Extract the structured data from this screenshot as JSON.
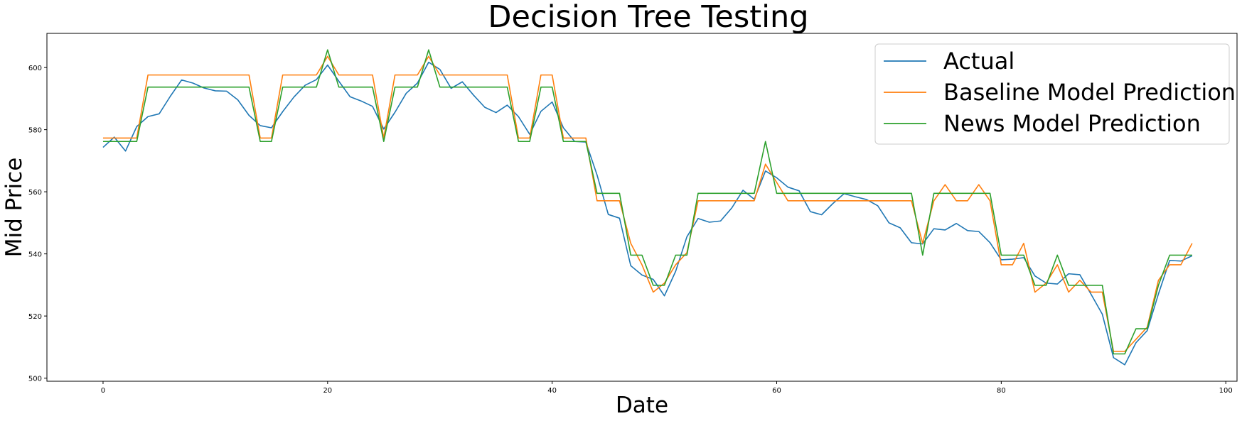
{
  "chart_data": {
    "type": "line",
    "title": "Decision Tree Testing",
    "xlabel": "Date",
    "ylabel": "Mid Price",
    "xlim": [
      -5,
      101
    ],
    "ylim": [
      499,
      611
    ],
    "xticks": [
      0,
      20,
      40,
      60,
      80,
      100
    ],
    "yticks": [
      500,
      520,
      540,
      560,
      580,
      600
    ],
    "grid": false,
    "legend_position": "top-right",
    "series": [
      {
        "name": "Actual",
        "color": "#1f77b4",
        "x": [
          0,
          1,
          2,
          3,
          4,
          5,
          6,
          7,
          8,
          9,
          10,
          11,
          12,
          13,
          14,
          15,
          16,
          17,
          18,
          19,
          20,
          21,
          22,
          23,
          24,
          25,
          26,
          27,
          28,
          29,
          30,
          31,
          32,
          33,
          34,
          35,
          36,
          37,
          38,
          39,
          40,
          41,
          42,
          43,
          44,
          45,
          46,
          47,
          48,
          49,
          50,
          51,
          52,
          53,
          54,
          55,
          56,
          57,
          58,
          59,
          60,
          61,
          62,
          63,
          64,
          65,
          66,
          67,
          68,
          69,
          70,
          71,
          72,
          73,
          74,
          75,
          76,
          77,
          78,
          79,
          80,
          81,
          82,
          83,
          84,
          85,
          86,
          87,
          88,
          89,
          90,
          91,
          92,
          93,
          94,
          95,
          96,
          97
        ],
        "values": [
          574.3,
          577.6,
          573.1,
          581.0,
          584.2,
          585.1,
          590.8,
          596.0,
          595.0,
          593.4,
          592.5,
          592.4,
          589.6,
          584.6,
          581.3,
          580.6,
          585.8,
          590.5,
          594.3,
          596.1,
          600.8,
          595.6,
          590.6,
          589.2,
          587.5,
          580.2,
          585.6,
          591.7,
          595.0,
          601.7,
          599.4,
          593.3,
          595.4,
          591.1,
          587.2,
          585.5,
          587.9,
          584.2,
          578.5,
          585.9,
          588.9,
          580.6,
          576.2,
          576.0,
          565.4,
          552.7,
          551.5,
          536.2,
          533.2,
          531.8,
          526.5,
          534.4,
          545.5,
          551.4,
          550.2,
          550.6,
          554.8,
          560.5,
          557.6,
          566.7,
          564.5,
          561.5,
          560.3,
          553.6,
          552.6,
          556.2,
          559.4,
          558.4,
          557.5,
          555.5,
          550.0,
          548.4,
          543.6,
          543.2,
          548.1,
          547.7,
          549.8,
          547.5,
          547.2,
          543.6,
          538.1,
          538.3,
          538.8,
          532.9,
          530.6,
          530.3,
          533.6,
          533.3,
          527.0,
          520.6,
          506.6,
          504.3,
          511.4,
          515.3,
          527.1,
          537.9,
          537.7,
          539.4
        ]
      },
      {
        "name": "Baseline Model Prediction",
        "color": "#ff7f0e",
        "x": [
          0,
          1,
          2,
          3,
          4,
          5,
          6,
          7,
          8,
          9,
          10,
          11,
          12,
          13,
          14,
          15,
          16,
          17,
          18,
          19,
          20,
          21,
          22,
          23,
          24,
          25,
          26,
          27,
          28,
          29,
          30,
          31,
          32,
          33,
          34,
          35,
          36,
          37,
          38,
          39,
          40,
          41,
          42,
          43,
          44,
          45,
          46,
          47,
          48,
          49,
          50,
          51,
          52,
          53,
          54,
          55,
          56,
          57,
          58,
          59,
          60,
          61,
          62,
          63,
          64,
          65,
          66,
          67,
          68,
          69,
          70,
          71,
          72,
          73,
          74,
          75,
          76,
          77,
          78,
          79,
          80,
          81,
          82,
          83,
          84,
          85,
          86,
          87,
          88,
          89,
          90,
          91,
          92,
          93,
          94,
          95,
          96,
          97
        ],
        "values": [
          577.3,
          577.3,
          577.3,
          577.3,
          597.6,
          597.6,
          597.6,
          597.6,
          597.6,
          597.6,
          597.6,
          597.6,
          597.6,
          597.6,
          577.3,
          577.3,
          597.6,
          597.6,
          597.6,
          597.6,
          603.6,
          597.6,
          597.6,
          597.6,
          597.6,
          577.3,
          597.6,
          597.6,
          597.6,
          603.6,
          597.6,
          597.6,
          597.6,
          597.6,
          597.6,
          597.6,
          597.6,
          577.3,
          577.3,
          597.6,
          597.6,
          577.3,
          577.3,
          577.3,
          557.1,
          557.1,
          557.1,
          543.4,
          536.5,
          527.7,
          530.6,
          536.5,
          540.4,
          557.1,
          557.1,
          557.1,
          557.1,
          557.1,
          557.1,
          568.9,
          563.0,
          557.1,
          557.1,
          557.1,
          557.1,
          557.1,
          557.1,
          557.1,
          557.1,
          557.1,
          557.1,
          557.1,
          557.1,
          543.4,
          557.1,
          562.3,
          557.1,
          557.1,
          562.3,
          557.1,
          536.5,
          536.5,
          543.4,
          527.7,
          530.6,
          536.5,
          527.7,
          531.5,
          527.7,
          527.7,
          508.6,
          508.6,
          512.5,
          516.4,
          531.5,
          536.5,
          536.5,
          543.4
        ]
      },
      {
        "name": "News Model Prediction",
        "color": "#2ca02c",
        "x": [
          0,
          1,
          2,
          3,
          4,
          5,
          6,
          7,
          8,
          9,
          10,
          11,
          12,
          13,
          14,
          15,
          16,
          17,
          18,
          19,
          20,
          21,
          22,
          23,
          24,
          25,
          26,
          27,
          28,
          29,
          30,
          31,
          32,
          33,
          34,
          35,
          36,
          37,
          38,
          39,
          40,
          41,
          42,
          43,
          44,
          45,
          46,
          47,
          48,
          49,
          50,
          51,
          52,
          53,
          54,
          55,
          56,
          57,
          58,
          59,
          60,
          61,
          62,
          63,
          64,
          65,
          66,
          67,
          68,
          69,
          70,
          71,
          72,
          73,
          74,
          75,
          76,
          77,
          78,
          79,
          80,
          81,
          82,
          83,
          84,
          85,
          86,
          87,
          88,
          89,
          90,
          91,
          92,
          93,
          94,
          95,
          96,
          97
        ],
        "values": [
          576.2,
          576.2,
          576.2,
          576.2,
          593.7,
          593.7,
          593.7,
          593.7,
          593.7,
          593.7,
          593.7,
          593.7,
          593.7,
          593.7,
          576.2,
          576.2,
          593.7,
          593.7,
          593.7,
          593.7,
          605.7,
          593.7,
          593.7,
          593.7,
          593.7,
          576.2,
          593.7,
          593.7,
          593.7,
          605.7,
          593.7,
          593.7,
          593.7,
          593.7,
          593.7,
          593.7,
          593.7,
          576.2,
          576.2,
          593.7,
          593.7,
          576.2,
          576.2,
          576.2,
          559.5,
          559.5,
          559.5,
          539.6,
          539.6,
          529.9,
          529.9,
          539.6,
          539.6,
          559.5,
          559.5,
          559.5,
          559.5,
          559.5,
          559.5,
          576.2,
          559.5,
          559.5,
          559.5,
          559.5,
          559.5,
          559.5,
          559.5,
          559.5,
          559.5,
          559.5,
          559.5,
          559.5,
          559.5,
          539.6,
          559.5,
          559.5,
          559.5,
          559.5,
          559.5,
          559.5,
          539.6,
          539.6,
          539.6,
          529.9,
          529.9,
          539.6,
          529.9,
          529.9,
          529.9,
          529.9,
          507.8,
          507.8,
          515.9,
          515.9,
          529.9,
          539.6,
          539.6,
          539.6
        ]
      }
    ]
  }
}
